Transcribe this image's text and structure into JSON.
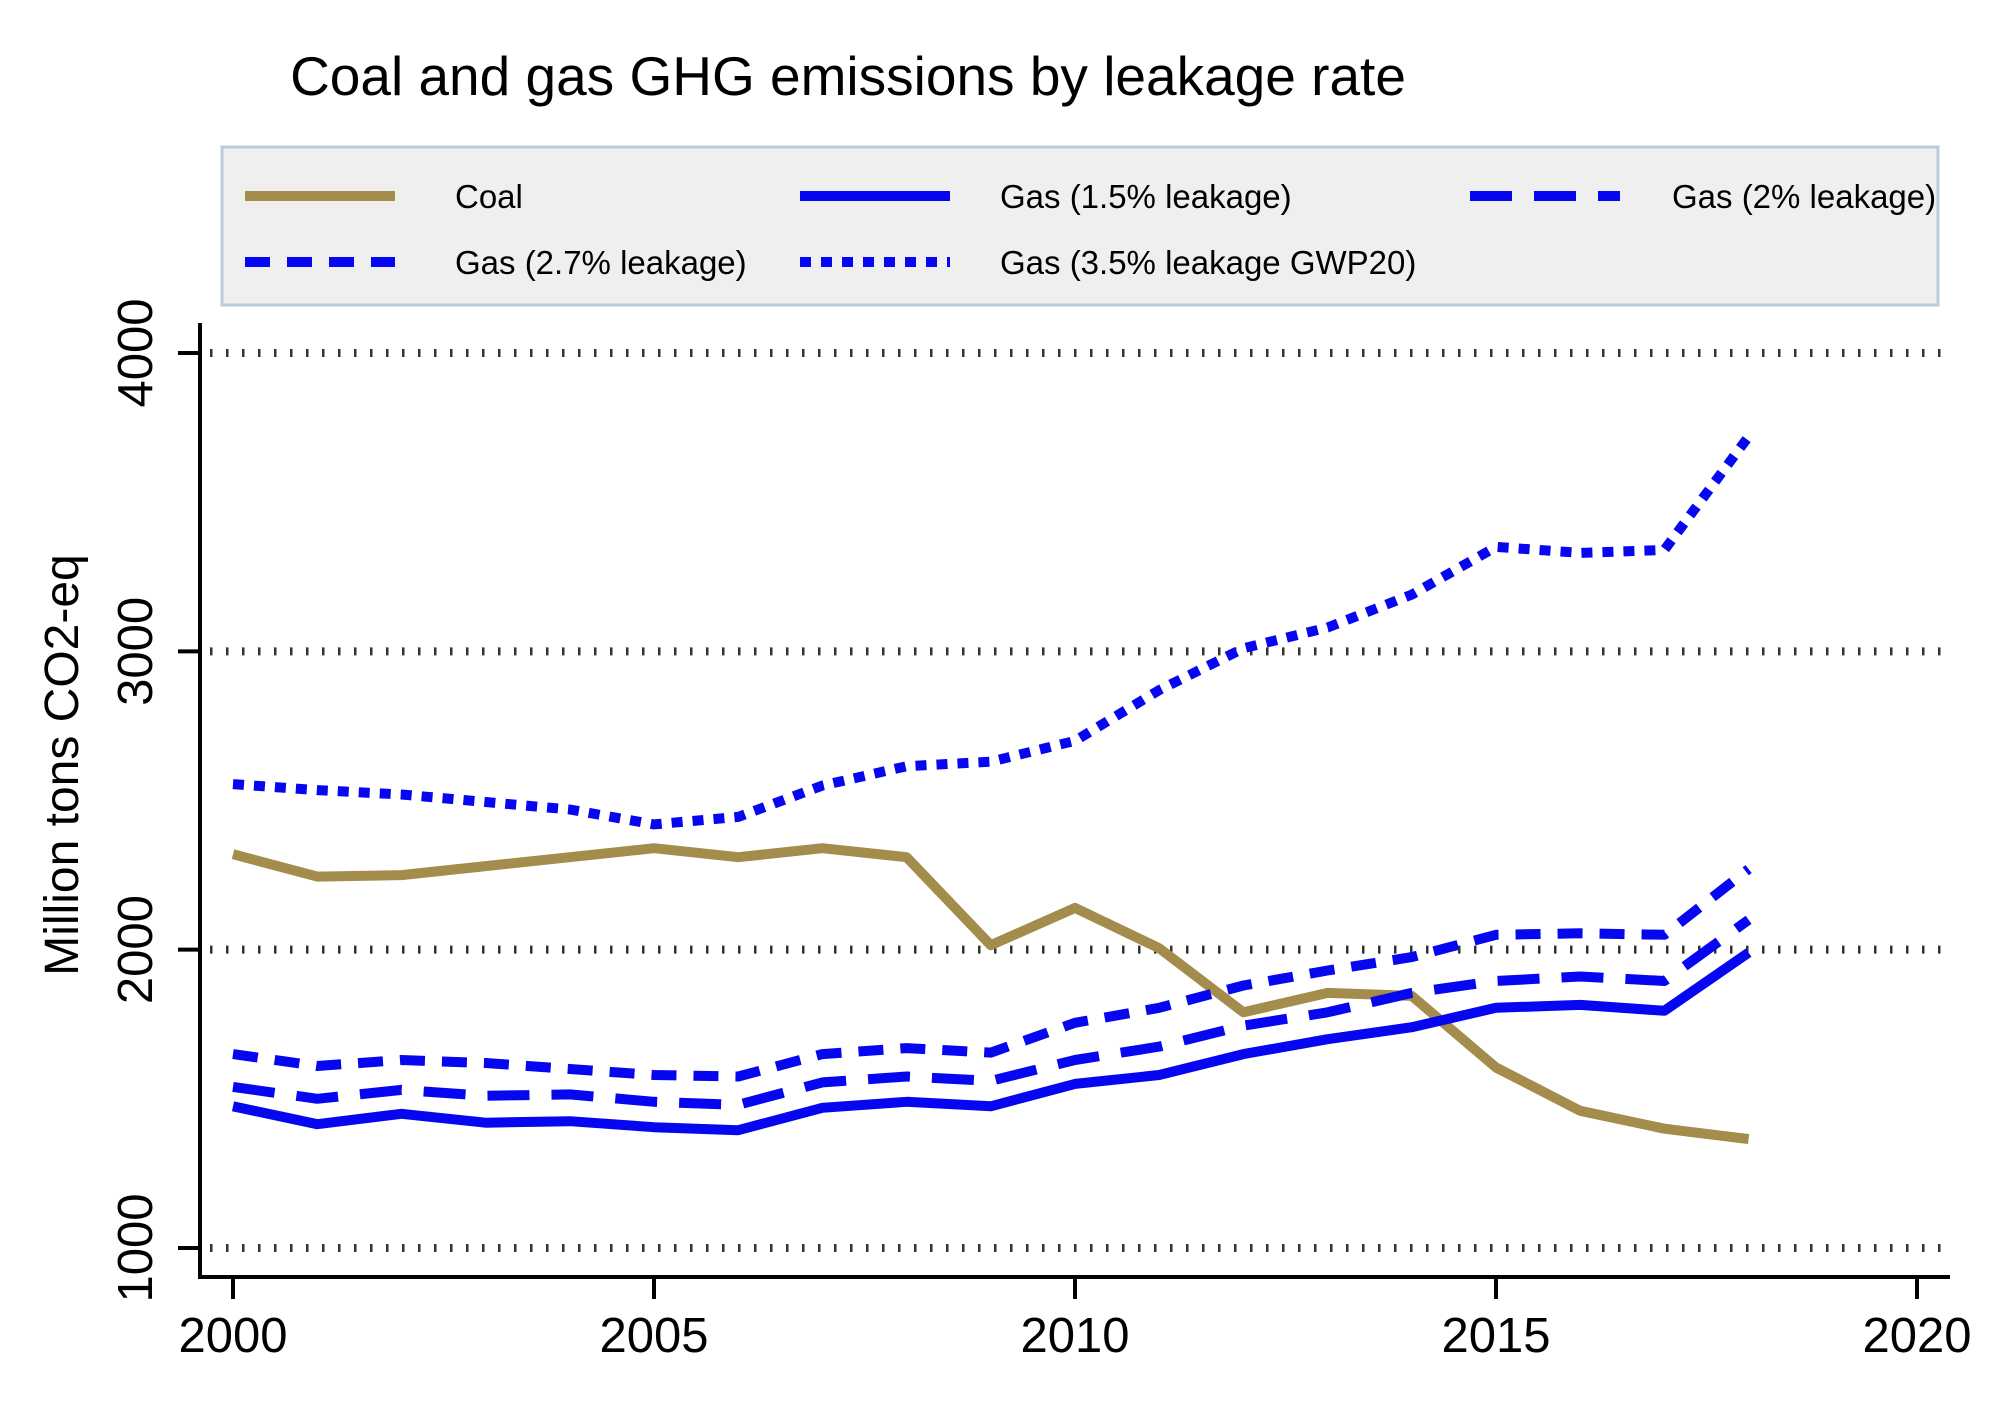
{
  "chart_data": {
    "type": "line",
    "title": "Coal and gas GHG emissions by leakage rate",
    "ylabel": "Million tons CO2-eq",
    "xlabel": "",
    "x": [
      2000,
      2001,
      2002,
      2003,
      2004,
      2005,
      2006,
      2007,
      2008,
      2009,
      2010,
      2011,
      2012,
      2013,
      2014,
      2015,
      2016,
      2017,
      2018
    ],
    "series": [
      {
        "id": "coal",
        "name": "Coal",
        "color": "#a38c4c",
        "dash": "solid",
        "values": [
          2320,
          2245,
          2250,
          2280,
          2310,
          2340,
          2310,
          2340,
          2310,
          2015,
          2140,
          2005,
          1790,
          1855,
          1845,
          1605,
          1460,
          1400,
          1365
        ]
      },
      {
        "id": "gas-1-5",
        "name": "Gas (1.5% leakage)",
        "color": "#0606f0",
        "dash": "solid",
        "values": [
          1475,
          1415,
          1450,
          1420,
          1425,
          1405,
          1395,
          1470,
          1490,
          1475,
          1550,
          1580,
          1650,
          1700,
          1740,
          1805,
          1815,
          1795,
          1990
        ]
      },
      {
        "id": "gas-2",
        "name": "Gas (2% leakage)",
        "color": "#0606f0",
        "dash": "long-dash",
        "values": [
          1540,
          1500,
          1530,
          1510,
          1515,
          1490,
          1480,
          1555,
          1575,
          1560,
          1630,
          1675,
          1745,
          1790,
          1855,
          1895,
          1910,
          1895,
          2100
        ]
      },
      {
        "id": "gas-2-7",
        "name": "Gas (2.7% leakage)",
        "color": "#0606f0",
        "dash": "dash",
        "values": [
          1650,
          1610,
          1630,
          1620,
          1600,
          1580,
          1575,
          1650,
          1670,
          1655,
          1755,
          1805,
          1880,
          1930,
          1975,
          2050,
          2055,
          2050,
          2270
        ]
      },
      {
        "id": "gas-3-5-gwp20",
        "name": "Gas (3.5% leakage GWP20)",
        "color": "#0606f0",
        "dash": "dot",
        "values": [
          2555,
          2535,
          2520,
          2495,
          2470,
          2420,
          2445,
          2550,
          2615,
          2630,
          2700,
          2870,
          3010,
          3080,
          3190,
          3350,
          3330,
          3340,
          3720
        ]
      }
    ],
    "yticks": [
      1000,
      2000,
      3000,
      4000
    ],
    "xticks": [
      2000,
      2005,
      2010,
      2015,
      2020
    ],
    "ylim": [
      900,
      4100
    ],
    "xlim": [
      1999.6,
      2020.4
    ],
    "grid": true,
    "legend_position": "top",
    "legend_rows": [
      [
        "coal",
        "gas-1-5",
        "gas-2"
      ],
      [
        "gas-2-7",
        "gas-3-5-gwp20"
      ]
    ],
    "palette": {
      "title_color": "#1b2d4f",
      "grid_color": "#333333",
      "axis_color": "#000000",
      "legend_fill": "#efefef",
      "legend_border": "#bccbd8"
    }
  }
}
